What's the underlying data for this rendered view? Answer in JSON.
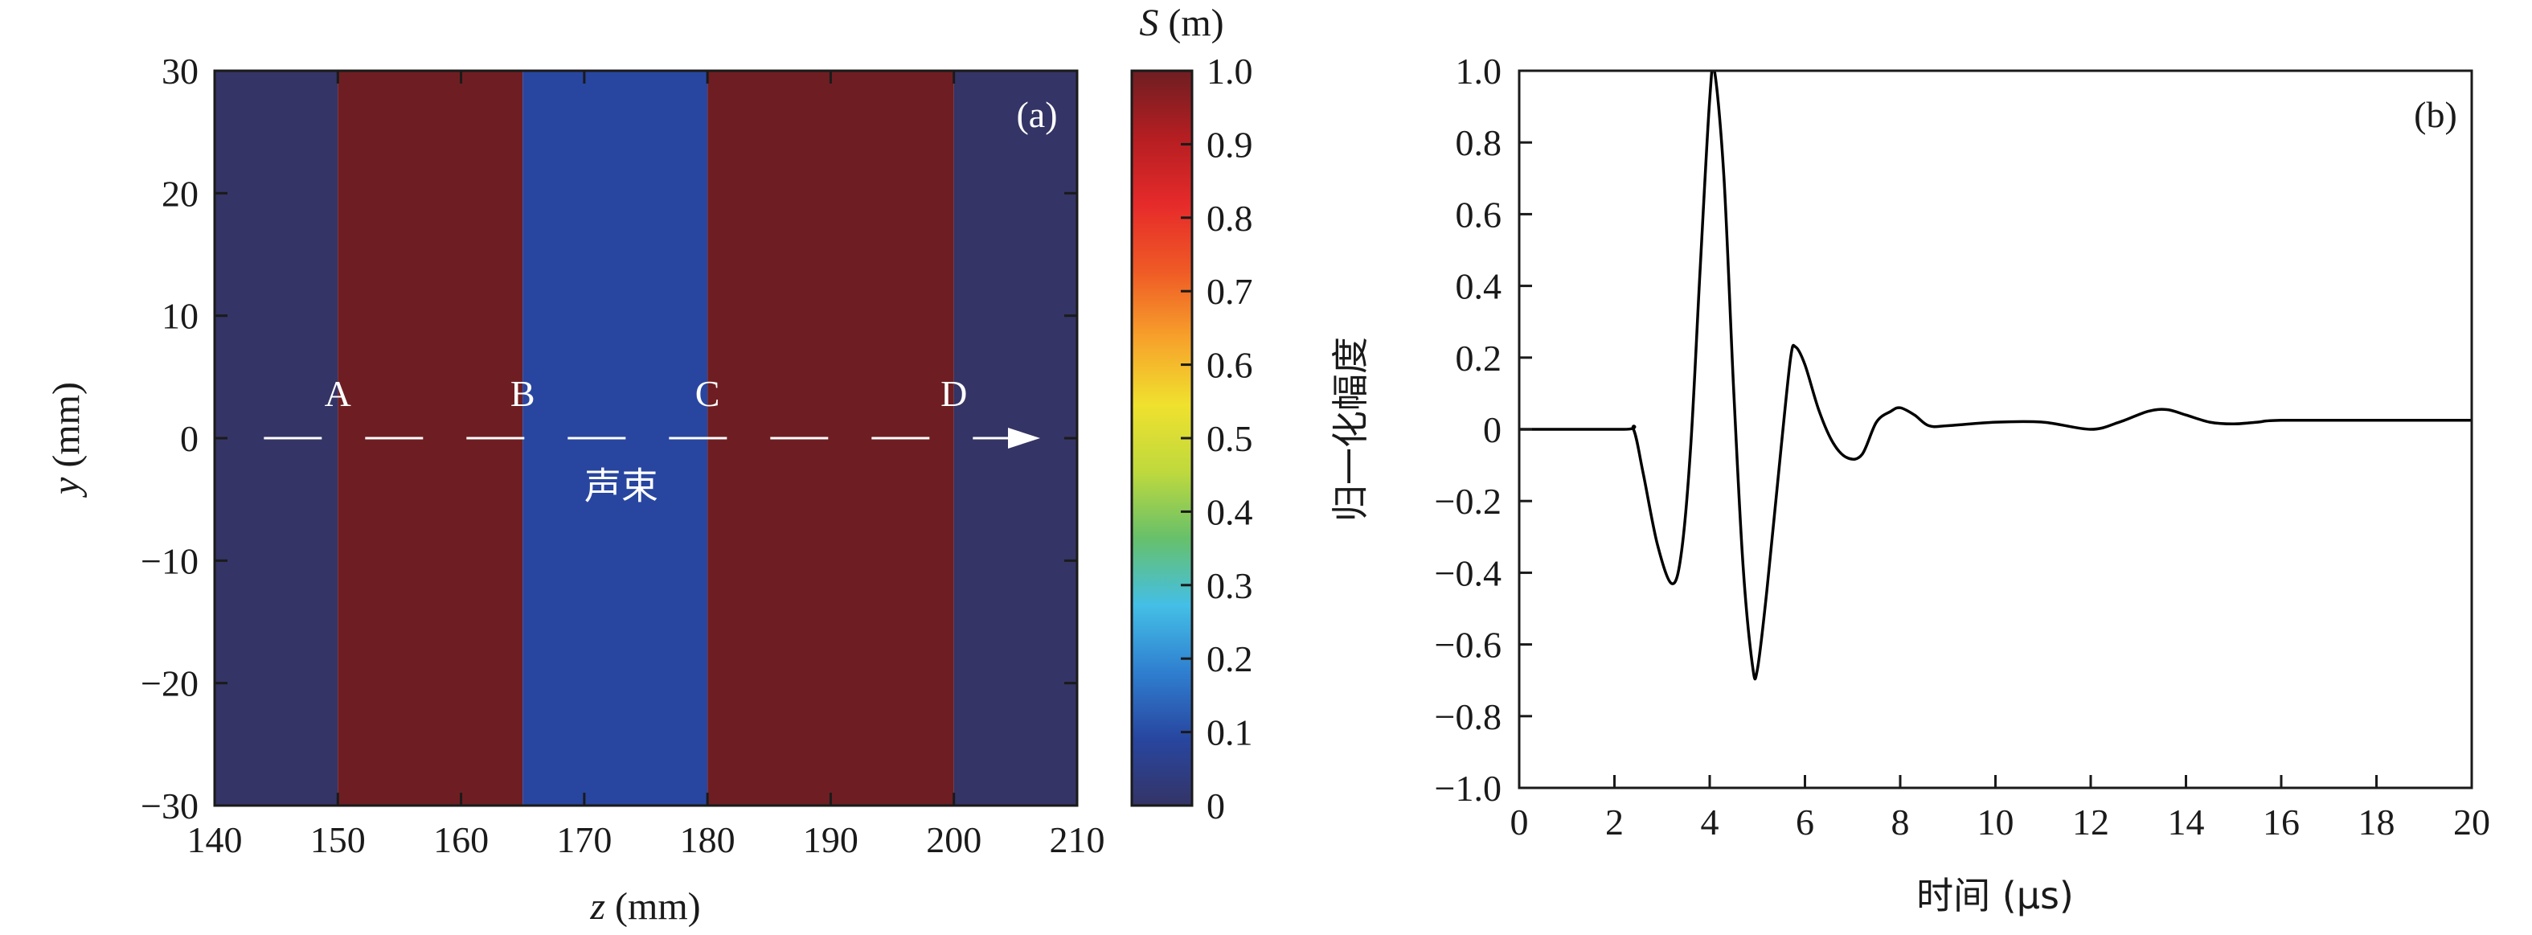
{
  "chart_data": [
    {
      "panel": "(a)",
      "type": "heatmap",
      "xlabel_var": "z",
      "xlabel_unit": " (mm)",
      "ylabel_var": "y",
      "ylabel_unit": " (mm)",
      "xlim": [
        140,
        210
      ],
      "ylim": [
        -30,
        30
      ],
      "xticks": [
        "140",
        "150",
        "160",
        "170",
        "180",
        "190",
        "200",
        "210"
      ],
      "yticks": [
        "30",
        "20",
        "10",
        "0",
        "−10",
        "−20",
        "−30"
      ],
      "yticks_values": [
        30,
        20,
        10,
        0,
        -10,
        -20,
        -30
      ],
      "regions": [
        {
          "z0": 140,
          "z1": 150,
          "S": 0.0,
          "color": "#343466"
        },
        {
          "z0": 150,
          "z1": 165,
          "S": 1.0,
          "color": "#6e1e22"
        },
        {
          "z0": 165,
          "z1": 180,
          "S": 0.15,
          "color": "#2846a0"
        },
        {
          "z0": 180,
          "z1": 200,
          "S": 1.0,
          "color": "#6e1e22"
        },
        {
          "z0": 200,
          "z1": 210,
          "S": 0.0,
          "color": "#343466"
        }
      ],
      "point_labels": [
        {
          "text": "A",
          "z": 150
        },
        {
          "text": "B",
          "z": 165
        },
        {
          "text": "C",
          "z": 180
        },
        {
          "text": "D",
          "z": 200
        }
      ],
      "beam": {
        "label": "声束",
        "z_start": 144,
        "z_end": 207,
        "y": 0,
        "label_z": 173,
        "label_y": -3
      },
      "colorbar": {
        "title_var": "S",
        "title_unit": " (m)",
        "ticks": [
          "1.0",
          "0.9",
          "0.8",
          "0.7",
          "0.6",
          "0.5",
          "0.4",
          "0.3",
          "0.2",
          "0.1",
          "0"
        ],
        "tick_values": [
          1.0,
          0.9,
          0.8,
          0.7,
          0.6,
          0.5,
          0.4,
          0.3,
          0.2,
          0.1,
          0
        ],
        "colormap": [
          "#343466",
          "#2846a0",
          "#2f7fd0",
          "#44bfe6",
          "#67c06a",
          "#bfd93d",
          "#f0e12e",
          "#f7a12b",
          "#ef5a26",
          "#e62a2a",
          "#b51e22",
          "#6e1e22"
        ]
      }
    },
    {
      "panel": "(b)",
      "type": "line",
      "xlabel": "时间 (μs)",
      "ylabel": "归一化幅度",
      "xlim": [
        0,
        20
      ],
      "ylim": [
        -1.0,
        1.0
      ],
      "xticks": [
        "0",
        "2",
        "4",
        "6",
        "8",
        "10",
        "12",
        "14",
        "16",
        "18",
        "20"
      ],
      "xticks_values": [
        0,
        2,
        4,
        6,
        8,
        10,
        12,
        14,
        16,
        18,
        20
      ],
      "yticks": [
        "1.0",
        "0.8",
        "0.6",
        "0.4",
        "0.2",
        "0",
        "−0.2",
        "−0.4",
        "−0.6",
        "−0.8",
        "−1.0"
      ],
      "yticks_values": [
        1.0,
        0.8,
        0.6,
        0.4,
        0.2,
        0,
        -0.2,
        -0.4,
        -0.6,
        -0.8,
        -1.0
      ],
      "series": [
        {
          "x": [
            0,
            2.2,
            2.4,
            2.6,
            2.9,
            3.2,
            3.4,
            3.6,
            3.8,
            4.0,
            4.1,
            4.3,
            4.5,
            4.7,
            4.9,
            5.0,
            5.2,
            5.5,
            5.7,
            5.8,
            6.0,
            6.3,
            6.6,
            6.9,
            7.2,
            7.5,
            7.8,
            8.0,
            8.3,
            8.6,
            9.0,
            10.0,
            11.0,
            12.0,
            12.6,
            13.2,
            13.6,
            14.0,
            14.5,
            15.0,
            15.5,
            16.0,
            18.0,
            20.0
          ],
          "y": [
            0,
            0,
            0.0,
            -0.12,
            -0.32,
            -0.43,
            -0.35,
            -0.05,
            0.45,
            0.92,
            1.0,
            0.7,
            0.12,
            -0.38,
            -0.66,
            -0.67,
            -0.45,
            -0.05,
            0.2,
            0.23,
            0.18,
            0.05,
            -0.04,
            -0.08,
            -0.07,
            0.02,
            0.05,
            0.06,
            0.04,
            0.01,
            0.01,
            0.02,
            0.02,
            0.0,
            0.02,
            0.05,
            0.055,
            0.04,
            0.02,
            0.015,
            0.02,
            0.025,
            0.025,
            0.025
          ]
        }
      ]
    }
  ],
  "colors": {
    "axis": "#1a1a1a",
    "beam": "#ffffff",
    "signal": "#000000"
  }
}
